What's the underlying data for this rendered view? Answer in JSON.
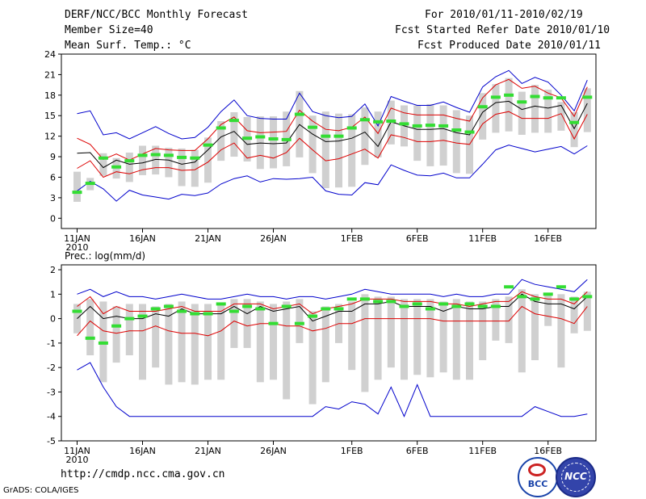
{
  "header": {
    "title": "DERF/NCC/BCC Monthly Forecast",
    "member_size": "Member Size=40",
    "variable": "Mean Surf. Temp.: °C",
    "period": "For 2010/01/11-2010/02/19",
    "refer_date": "Fcst Started Refer Date 2010/01/10",
    "produced_date": "Fcst Produced Date 2010/01/11"
  },
  "footer": {
    "url": "http://cmdp.ncc.cma.gov.cn",
    "credit": "GrADS: COLA/IGES",
    "logo_bcc": "BCC",
    "logo_ncc": "NCC"
  },
  "colors": {
    "box": "#d0d0d0",
    "median": "#33dd33",
    "mean": "#000000",
    "spread": "#dd0000",
    "extreme": "#0000cc"
  },
  "chart_data": [
    {
      "type": "line",
      "title": "Mean Surf. Temp.: °C",
      "ylabel": "°C",
      "ylim": [
        -1.5,
        24
      ],
      "yticks": [
        0,
        3,
        6,
        9,
        12,
        15,
        18,
        21,
        24
      ],
      "xtick_days": [
        1,
        6,
        11,
        16,
        22,
        27,
        32,
        37
      ],
      "xtick_labels": [
        "11JAN",
        "16JAN",
        "21JAN",
        "26JAN",
        "1FEB",
        "6FEB",
        "11FEB",
        "16FEB"
      ],
      "year_label": "2010",
      "days": 40,
      "series": [
        {
          "name": "max",
          "values": [
            15.3,
            15.7,
            12.2,
            12.5,
            11.6,
            12.5,
            13.4,
            12.4,
            11.6,
            11.8,
            13.3,
            15.6,
            17.3,
            15.0,
            14.6,
            14.5,
            14.5,
            18.3,
            15.6,
            15.0,
            14.7,
            14.9,
            16.7,
            13.5,
            17.8,
            17.1,
            16.5,
            16.5,
            17.0,
            16.2,
            15.5,
            19.2,
            20.7,
            21.6,
            19.7,
            20.6,
            19.9,
            18.0,
            15.7,
            20.2
          ]
        },
        {
          "name": "upper",
          "values": [
            11.7,
            10.8,
            8.6,
            9.4,
            8.5,
            9.4,
            10.2,
            10.0,
            9.9,
            9.9,
            11.6,
            13.7,
            14.8,
            12.8,
            12.5,
            12.6,
            12.7,
            15.8,
            14.2,
            13.0,
            12.8,
            13.3,
            14.8,
            12.4,
            16.1,
            15.4,
            15.1,
            15.1,
            15.1,
            14.6,
            14.2,
            17.6,
            19.5,
            20.3,
            19.0,
            19.3,
            18.3,
            17.6,
            14.9,
            19.2
          ]
        },
        {
          "name": "mean",
          "values": [
            9.5,
            9.6,
            7.4,
            8.5,
            7.9,
            8.1,
            8.6,
            8.5,
            7.9,
            8.2,
            10.0,
            11.9,
            12.7,
            10.8,
            11.0,
            10.9,
            11.0,
            13.7,
            12.3,
            11.2,
            11.3,
            11.7,
            12.6,
            10.5,
            14.1,
            13.5,
            13.0,
            13.0,
            13.1,
            12.5,
            12.2,
            15.5,
            16.9,
            17.1,
            15.9,
            16.4,
            16.1,
            16.5,
            13.1,
            16.8
          ]
        },
        {
          "name": "lower",
          "values": [
            7.3,
            8.4,
            6.0,
            6.8,
            6.5,
            7.1,
            7.4,
            7.4,
            7.0,
            7.1,
            8.2,
            10.0,
            11.0,
            8.8,
            9.2,
            8.8,
            9.6,
            11.7,
            10.0,
            8.4,
            8.7,
            9.4,
            10.1,
            8.8,
            12.2,
            11.8,
            11.2,
            11.2,
            11.4,
            11.0,
            10.8,
            13.8,
            15.2,
            15.6,
            14.6,
            14.6,
            14.6,
            15.3,
            11.6,
            15.2
          ]
        },
        {
          "name": "min",
          "values": [
            4.0,
            5.4,
            4.3,
            2.5,
            4.1,
            3.4,
            3.1,
            2.8,
            3.5,
            3.3,
            3.7,
            5.0,
            5.8,
            6.2,
            5.3,
            5.8,
            5.7,
            5.8,
            6.0,
            4.0,
            3.5,
            3.4,
            5.2,
            4.9,
            7.8,
            7.0,
            6.3,
            6.2,
            6.6,
            5.9,
            5.9,
            7.9,
            10.0,
            10.7,
            10.2,
            9.7,
            10.1,
            10.5,
            9.4,
            10.6
          ]
        },
        {
          "name": "median",
          "values": [
            3.8,
            5.1,
            8.8,
            7.5,
            8.4,
            9.2,
            9.3,
            9.2,
            8.9,
            8.8,
            10.7,
            13.2,
            14.3,
            11.7,
            11.9,
            11.6,
            11.5,
            15.2,
            13.3,
            12.0,
            12.0,
            13.2,
            14.4,
            14.1,
            14.2,
            13.8,
            13.5,
            13.6,
            13.5,
            12.9,
            12.6,
            16.3,
            17.7,
            18.0,
            17.0,
            17.8,
            17.6,
            17.6,
            14.0,
            17.7
          ]
        },
        {
          "name": "box_top",
          "values": [
            6.8,
            5.9,
            9.5,
            8.8,
            9.6,
            10.6,
            10.6,
            10.3,
            10.2,
            10.0,
            11.8,
            14.2,
            15.5,
            14.8,
            14.9,
            14.9,
            15.6,
            18.6,
            15.0,
            15.6,
            15.3,
            15.2,
            16.2,
            15.6,
            17.2,
            16.5,
            16.5,
            16.7,
            16.5,
            15.8,
            15.0,
            18.3,
            19.6,
            20.5,
            18.5,
            19.5,
            18.8,
            17.0,
            15.5,
            19.0
          ]
        },
        {
          "name": "box_bottom",
          "values": [
            2.4,
            4.1,
            6.2,
            5.8,
            5.3,
            6.3,
            6.4,
            6.0,
            4.7,
            4.6,
            5.2,
            8.4,
            9.0,
            8.3,
            7.2,
            7.3,
            7.6,
            8.9,
            6.6,
            4.4,
            4.5,
            4.6,
            7.8,
            8.9,
            10.8,
            10.5,
            8.4,
            7.6,
            7.7,
            6.6,
            6.5,
            11.5,
            12.5,
            12.7,
            12.2,
            12.5,
            12.5,
            12.8,
            10.4,
            12.6
          ]
        }
      ]
    },
    {
      "type": "line",
      "title": "Prec.: log(mm/d)",
      "ylabel": "log(mm/d)",
      "ylim": [
        -5,
        2.2
      ],
      "yticks": [
        -5,
        -4,
        -3,
        -2,
        -1,
        0,
        1,
        2
      ],
      "xtick_days": [
        1,
        6,
        11,
        16,
        22,
        27,
        32,
        37
      ],
      "xtick_labels": [
        "11JAN",
        "16JAN",
        "21JAN",
        "26JAN",
        "1FEB",
        "6FEB",
        "11FEB",
        "16FEB"
      ],
      "year_label": "2010",
      "days": 40,
      "series": [
        {
          "name": "max",
          "values": [
            1.0,
            1.2,
            0.9,
            1.1,
            0.9,
            0.9,
            0.8,
            0.9,
            1.0,
            0.9,
            0.8,
            0.8,
            0.9,
            1.0,
            0.9,
            0.9,
            0.8,
            0.9,
            0.9,
            0.8,
            0.9,
            1.0,
            1.2,
            1.1,
            1.0,
            1.0,
            1.0,
            1.0,
            0.9,
            1.0,
            0.9,
            0.9,
            1.0,
            1.0,
            1.6,
            1.4,
            1.3,
            1.2,
            1.1,
            1.6
          ]
        },
        {
          "name": "upper",
          "values": [
            0.5,
            0.9,
            0.2,
            0.5,
            0.3,
            0.3,
            0.3,
            0.4,
            0.5,
            0.3,
            0.3,
            0.3,
            0.6,
            0.6,
            0.6,
            0.4,
            0.5,
            0.6,
            0.2,
            0.4,
            0.5,
            0.6,
            0.8,
            0.8,
            0.8,
            0.7,
            0.7,
            0.7,
            0.6,
            0.6,
            0.5,
            0.6,
            0.7,
            0.7,
            1.1,
            0.9,
            0.8,
            0.8,
            0.6,
            1.1
          ]
        },
        {
          "name": "mean",
          "values": [
            0.0,
            0.5,
            0.0,
            0.1,
            0.0,
            0.0,
            0.2,
            0.1,
            0.4,
            0.2,
            0.2,
            0.2,
            0.5,
            0.2,
            0.5,
            0.3,
            0.4,
            0.5,
            -0.1,
            0.1,
            0.3,
            0.3,
            0.6,
            0.6,
            0.7,
            0.5,
            0.5,
            0.5,
            0.3,
            0.5,
            0.4,
            0.4,
            0.5,
            0.5,
            1.0,
            0.7,
            0.6,
            0.6,
            0.4,
            0.9
          ]
        },
        {
          "name": "lower",
          "values": [
            -0.7,
            -0.1,
            -0.5,
            -0.6,
            -0.5,
            -0.5,
            -0.3,
            -0.5,
            -0.6,
            -0.6,
            -0.7,
            -0.5,
            -0.1,
            -0.3,
            -0.2,
            -0.2,
            -0.3,
            -0.3,
            -0.5,
            -0.4,
            -0.2,
            -0.2,
            0.0,
            0.0,
            0.0,
            0.0,
            0.0,
            0.0,
            -0.1,
            -0.1,
            -0.1,
            -0.1,
            -0.1,
            -0.1,
            0.5,
            0.2,
            0.1,
            0.0,
            -0.2,
            0.5
          ]
        },
        {
          "name": "min",
          "values": [
            -2.1,
            -1.8,
            -2.8,
            -3.6,
            -4.0,
            -4.0,
            -4.0,
            -4.0,
            -4.0,
            -4.0,
            -4.0,
            -4.0,
            -4.0,
            -4.0,
            -4.0,
            -4.0,
            -4.0,
            -4.0,
            -4.0,
            -3.6,
            -3.7,
            -3.4,
            -3.5,
            -3.9,
            -2.8,
            -4.0,
            -2.7,
            -4.0,
            -4.0,
            -4.0,
            -4.0,
            -4.0,
            -4.0,
            -4.0,
            -4.0,
            -3.6,
            -3.8,
            -4.0,
            -4.0,
            -3.9
          ]
        },
        {
          "name": "median",
          "values": [
            0.3,
            -0.8,
            -1.0,
            -0.3,
            0.0,
            0.1,
            0.4,
            0.5,
            0.3,
            0.2,
            0.2,
            0.6,
            0.3,
            0.5,
            0.4,
            -0.2,
            0.5,
            -0.2,
            0.1,
            0.4,
            0.4,
            0.8,
            0.8,
            0.7,
            0.7,
            0.5,
            0.6,
            0.4,
            0.6,
            0.5,
            0.6,
            0.5,
            0.5,
            1.3,
            0.9,
            0.8,
            1.0,
            1.3,
            0.8,
            0.9
          ]
        },
        {
          "name": "box_top",
          "values": [
            0.6,
            0.8,
            0.7,
            0.5,
            0.6,
            0.6,
            0.5,
            0.6,
            0.7,
            0.6,
            0.6,
            0.6,
            0.8,
            0.8,
            0.7,
            0.6,
            0.7,
            0.8,
            0.3,
            0.5,
            0.6,
            0.7,
            1.0,
            0.9,
            0.9,
            0.8,
            0.8,
            0.8,
            0.7,
            0.8,
            0.7,
            0.7,
            0.8,
            0.9,
            1.2,
            1.0,
            1.0,
            1.0,
            0.9,
            1.1
          ]
        },
        {
          "name": "box_bottom",
          "values": [
            -0.6,
            -1.5,
            -2.6,
            -1.8,
            -1.5,
            -2.5,
            -2.0,
            -2.7,
            -2.6,
            -2.7,
            -2.5,
            -2.5,
            -1.2,
            -1.2,
            -2.6,
            -2.5,
            -3.3,
            -1.0,
            -3.5,
            -2.6,
            -1.0,
            -2.1,
            -3.0,
            -2.5,
            -2.0,
            -2.5,
            -2.3,
            -2.4,
            -2.2,
            -2.5,
            -2.5,
            -1.7,
            -0.9,
            -1.0,
            -2.2,
            -1.7,
            -0.3,
            -2.0,
            -0.6,
            -0.5
          ]
        }
      ]
    }
  ]
}
